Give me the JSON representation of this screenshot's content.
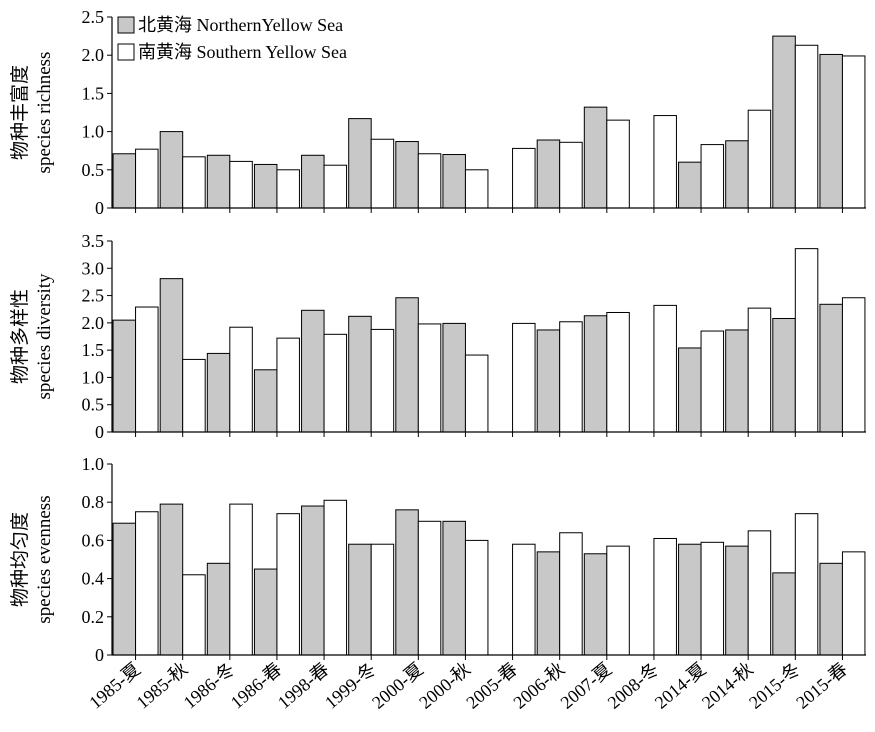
{
  "legend": [
    {
      "label": "北黄海 NorthernYellow Sea",
      "color": "#c8c8c8"
    },
    {
      "label": "南黄海 Southern Yellow Sea",
      "color": "#ffffff"
    }
  ],
  "chart_data": {
    "type": "bar",
    "categories": [
      "1985-夏",
      "1985-秋",
      "1986-冬",
      "1986-春",
      "1998-春",
      "1999-冬",
      "2000-夏",
      "2000-秋",
      "2005-春",
      "2006-秋",
      "2007-夏",
      "2008-冬",
      "2014-夏",
      "2014-秋",
      "2015-冬",
      "2015-春"
    ],
    "legend_placement": "top-left",
    "grid": false,
    "panels": [
      {
        "ylabel_cn": "物种丰富度",
        "ylabel_en": "species richness",
        "ylim": [
          0,
          2.5
        ],
        "yticks": [
          0,
          0.5,
          1.0,
          1.5,
          2.0,
          2.5
        ],
        "ytick_labels": [
          "0",
          "0.5",
          "1.0",
          "1.5",
          "2.0",
          "2.5"
        ],
        "series": [
          {
            "name": "北黄海 NorthernYellow Sea",
            "values": [
              0.71,
              1.0,
              0.69,
              0.57,
              0.69,
              1.17,
              0.87,
              0.7,
              null,
              0.89,
              1.32,
              null,
              0.6,
              0.88,
              2.25,
              2.01
            ]
          },
          {
            "name": "南黄海 Southern Yellow Sea",
            "values": [
              0.77,
              0.67,
              0.61,
              0.5,
              0.56,
              0.9,
              0.71,
              0.5,
              0.78,
              0.86,
              1.15,
              1.21,
              0.83,
              1.28,
              2.13,
              1.99
            ]
          }
        ]
      },
      {
        "ylabel_cn": "物种多样性",
        "ylabel_en": "species diversity",
        "ylim": [
          0,
          3.5
        ],
        "yticks": [
          0,
          0.5,
          1.0,
          1.5,
          2.0,
          2.5,
          3.0,
          3.5
        ],
        "ytick_labels": [
          "0",
          "0.5",
          "1.0",
          "1.5",
          "2.0",
          "2.5",
          "3.0",
          "3.5"
        ],
        "series": [
          {
            "name": "北黄海 NorthernYellow Sea",
            "values": [
              2.05,
              2.81,
              1.44,
              1.14,
              2.23,
              2.12,
              2.46,
              1.99,
              null,
              1.87,
              2.13,
              null,
              1.54,
              1.87,
              2.08,
              2.34
            ]
          },
          {
            "name": "南黄海 Southern Yellow Sea",
            "values": [
              2.29,
              1.33,
              1.92,
              1.72,
              1.79,
              1.88,
              1.98,
              1.41,
              1.99,
              2.02,
              2.19,
              2.32,
              1.85,
              2.27,
              3.36,
              2.46
            ]
          }
        ]
      },
      {
        "ylabel_cn": "物种均匀度",
        "ylabel_en": "species evenness",
        "ylim": [
          0,
          1.0
        ],
        "yticks": [
          0,
          0.2,
          0.4,
          0.6,
          0.8,
          1.0
        ],
        "ytick_labels": [
          "0",
          "0.2",
          "0.4",
          "0.6",
          "0.8",
          "1.0"
        ],
        "series": [
          {
            "name": "北黄海 NorthernYellow Sea",
            "values": [
              0.69,
              0.79,
              0.48,
              0.45,
              0.78,
              0.58,
              0.76,
              0.7,
              null,
              0.54,
              0.53,
              null,
              0.58,
              0.57,
              0.43,
              0.48
            ]
          },
          {
            "name": "南黄海 Southern Yellow Sea",
            "values": [
              0.75,
              0.42,
              0.79,
              0.74,
              0.81,
              0.58,
              0.7,
              0.6,
              0.58,
              0.64,
              0.57,
              0.61,
              0.59,
              0.65,
              0.74,
              0.54
            ]
          }
        ]
      }
    ]
  }
}
